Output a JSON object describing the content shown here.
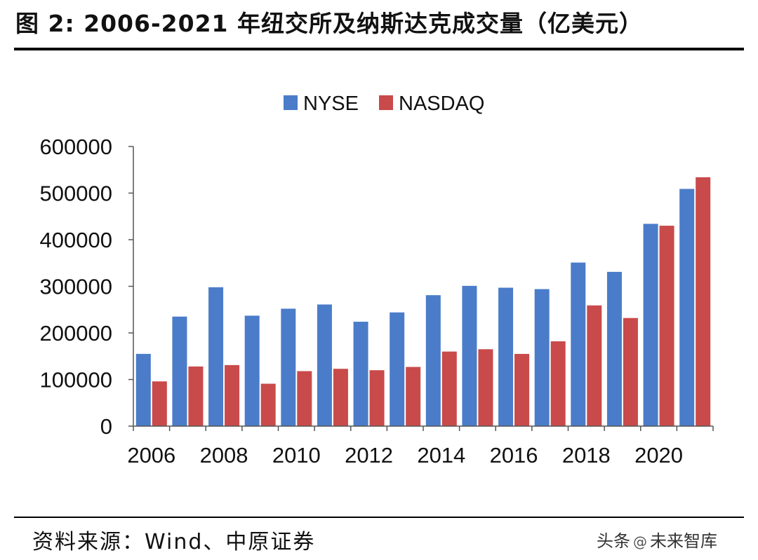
{
  "header": {
    "title": "图 2: 2006-2021 年纽交所及纳斯达克成交量（亿美元）"
  },
  "footer": {
    "source": "资料来源：Wind、中原证券",
    "watermark_prefix": "头条",
    "watermark_glyph": "@",
    "watermark_name": "未来智库"
  },
  "colors": {
    "nyse": "#4a7cc9",
    "nasdaq": "#c94a4a",
    "axis": "#555555"
  },
  "chart_data": {
    "type": "bar",
    "title": "",
    "xlabel": "",
    "ylabel": "",
    "ylim": [
      0,
      600000
    ],
    "yticks": [
      0,
      100000,
      200000,
      300000,
      400000,
      500000,
      600000
    ],
    "ytick_labels": [
      "0",
      "100000",
      "200000",
      "300000",
      "400000",
      "500000",
      "600000"
    ],
    "categories": [
      "2006",
      "2007",
      "2008",
      "2009",
      "2010",
      "2011",
      "2012",
      "2013",
      "2014",
      "2015",
      "2016",
      "2017",
      "2018",
      "2019",
      "2020",
      "2021"
    ],
    "xtick_labels": [
      "2006",
      "",
      "2008",
      "",
      "2010",
      "",
      "2012",
      "",
      "2014",
      "",
      "2016",
      "",
      "2018",
      "",
      "2020",
      ""
    ],
    "legend_position": "top-center",
    "series": [
      {
        "name": "NYSE",
        "values": [
          155000,
          235000,
          298000,
          237000,
          252000,
          261000,
          224000,
          244000,
          281000,
          301000,
          297000,
          294000,
          351000,
          331000,
          434000,
          509000
        ]
      },
      {
        "name": "NASDAQ",
        "values": [
          96000,
          128000,
          131000,
          91000,
          118000,
          123000,
          120000,
          127000,
          160000,
          165000,
          155000,
          182000,
          259000,
          232000,
          430000,
          534000
        ]
      }
    ]
  }
}
